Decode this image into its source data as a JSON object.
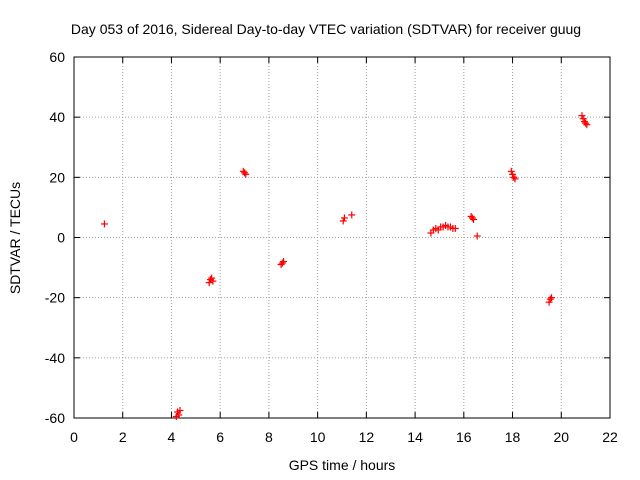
{
  "chart_data": {
    "type": "scatter",
    "title": "Day 053 of 2016, Sidereal Day-to-day VTEC variation (SDTVAR) for receiver guug",
    "xlabel": "GPS time / hours",
    "ylabel": "SDTVAR / TECUs",
    "xlim": [
      0,
      22
    ],
    "ylim": [
      -60,
      60
    ],
    "x_ticks": [
      0,
      2,
      4,
      6,
      8,
      10,
      12,
      14,
      16,
      18,
      20,
      22
    ],
    "y_ticks": [
      -60,
      -40,
      -20,
      0,
      20,
      40,
      60
    ],
    "grid": true,
    "marker": "plus",
    "color": "#ff0000",
    "series": [
      {
        "name": "SDTVAR",
        "x": [
          1.25,
          4.2,
          4.25,
          4.3,
          4.35,
          5.55,
          5.6,
          5.65,
          5.7,
          6.95,
          7.0,
          7.05,
          8.5,
          8.55,
          8.6,
          11.05,
          11.1,
          11.4,
          14.65,
          14.75,
          14.85,
          14.95,
          15.05,
          15.15,
          15.25,
          15.35,
          15.45,
          15.55,
          15.65,
          16.3,
          16.35,
          16.4,
          16.55,
          17.95,
          18.0,
          18.05,
          18.1,
          19.5,
          19.55,
          19.6,
          20.85,
          20.9,
          20.95,
          21.0,
          21.05
        ],
        "y": [
          4.5,
          -59.5,
          -58.0,
          -59.0,
          -57.5,
          -15.0,
          -14.0,
          -13.5,
          -14.5,
          22.0,
          21.5,
          21.0,
          -9.0,
          -8.5,
          -8.0,
          5.5,
          6.5,
          7.5,
          1.5,
          2.5,
          3.0,
          2.5,
          3.5,
          3.5,
          4.0,
          3.5,
          3.5,
          3.0,
          3.0,
          7.0,
          6.5,
          6.0,
          0.5,
          22.0,
          21.0,
          20.0,
          19.5,
          -21.5,
          -20.5,
          -20.0,
          40.5,
          39.5,
          38.5,
          38.0,
          37.5
        ]
      }
    ]
  }
}
